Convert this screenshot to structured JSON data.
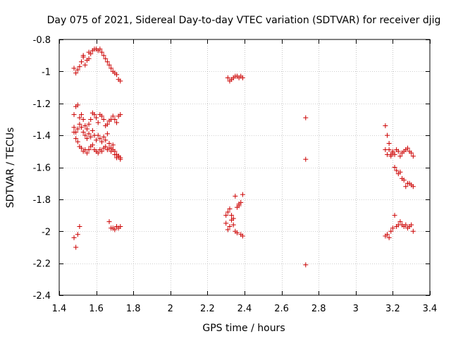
{
  "chart_data": {
    "type": "scatter",
    "title": "Day 075 of 2021, Sidereal Day-to-day VTEC variation (SDTVAR) for receiver djig",
    "xlabel": "GPS time / hours",
    "ylabel": "SDTVAR / TECUs",
    "xlim": [
      1.4,
      3.4
    ],
    "ylim": [
      -2.4,
      -0.8
    ],
    "xticks": [
      1.4,
      1.6,
      1.8,
      2,
      2.2,
      2.4,
      2.6,
      2.8,
      3,
      3.2,
      3.4
    ],
    "xtick_labels": [
      "1.4",
      "1.6",
      "1.8",
      "2",
      "2.2",
      "2.4",
      "2.6",
      "2.8",
      "3",
      "3.2",
      "3.4"
    ],
    "yticks": [
      -0.8,
      -1,
      -1.2,
      -1.4,
      -1.6,
      -1.8,
      -2,
      -2.2,
      -2.4
    ],
    "ytick_labels": [
      "-0.8",
      "-1",
      "-1.2",
      "-1.4",
      "-1.6",
      "-1.8",
      "-2",
      "-2.2",
      "-2.4"
    ],
    "grid": true,
    "marker": "+",
    "color": "#cc0000",
    "series": [
      {
        "name": "SDTVAR",
        "points": [
          [
            1.48,
            -0.98
          ],
          [
            1.49,
            -1.01
          ],
          [
            1.5,
            -0.99
          ],
          [
            1.51,
            -0.97
          ],
          [
            1.52,
            -0.94
          ],
          [
            1.53,
            -0.91
          ],
          [
            1.54,
            -0.96
          ],
          [
            1.55,
            -0.93
          ],
          [
            1.56,
            -0.92
          ],
          [
            1.57,
            -0.89
          ],
          [
            1.58,
            -0.87
          ],
          [
            1.59,
            -0.86
          ],
          [
            1.6,
            -0.86
          ],
          [
            1.61,
            -0.87
          ],
          [
            1.62,
            -0.86
          ],
          [
            1.63,
            -0.88
          ],
          [
            1.64,
            -0.9
          ],
          [
            1.65,
            -0.92
          ],
          [
            1.66,
            -0.94
          ],
          [
            1.67,
            -0.96
          ],
          [
            1.68,
            -0.98
          ],
          [
            1.69,
            -1.0
          ],
          [
            1.7,
            -1.01
          ],
          [
            1.71,
            -1.02
          ],
          [
            1.72,
            -1.05
          ],
          [
            1.73,
            -1.06
          ],
          [
            1.53,
            -0.9
          ],
          [
            1.56,
            -0.88
          ],
          [
            1.48,
            -1.27
          ],
          [
            1.49,
            -1.22
          ],
          [
            1.5,
            -1.21
          ],
          [
            1.51,
            -1.29
          ],
          [
            1.52,
            -1.27
          ],
          [
            1.53,
            -1.3
          ],
          [
            1.54,
            -1.34
          ],
          [
            1.55,
            -1.36
          ],
          [
            1.56,
            -1.33
          ],
          [
            1.57,
            -1.3
          ],
          [
            1.58,
            -1.26
          ],
          [
            1.59,
            -1.27
          ],
          [
            1.6,
            -1.29
          ],
          [
            1.61,
            -1.32
          ],
          [
            1.62,
            -1.27
          ],
          [
            1.63,
            -1.28
          ],
          [
            1.64,
            -1.3
          ],
          [
            1.65,
            -1.34
          ],
          [
            1.66,
            -1.33
          ],
          [
            1.67,
            -1.31
          ],
          [
            1.68,
            -1.3
          ],
          [
            1.69,
            -1.28
          ],
          [
            1.7,
            -1.3
          ],
          [
            1.71,
            -1.32
          ],
          [
            1.72,
            -1.28
          ],
          [
            1.73,
            -1.27
          ],
          [
            1.48,
            -1.35
          ],
          [
            1.49,
            -1.38
          ],
          [
            1.5,
            -1.36
          ],
          [
            1.51,
            -1.33
          ],
          [
            1.52,
            -1.35
          ],
          [
            1.53,
            -1.38
          ],
          [
            1.54,
            -1.4
          ],
          [
            1.55,
            -1.42
          ],
          [
            1.56,
            -1.39
          ],
          [
            1.57,
            -1.41
          ],
          [
            1.58,
            -1.37
          ],
          [
            1.59,
            -1.4
          ],
          [
            1.6,
            -1.43
          ],
          [
            1.61,
            -1.4
          ],
          [
            1.62,
            -1.42
          ],
          [
            1.63,
            -1.44
          ],
          [
            1.64,
            -1.41
          ],
          [
            1.65,
            -1.43
          ],
          [
            1.66,
            -1.39
          ],
          [
            1.67,
            -1.45
          ],
          [
            1.68,
            -1.48
          ],
          [
            1.69,
            -1.46
          ],
          [
            1.7,
            -1.5
          ],
          [
            1.71,
            -1.52
          ],
          [
            1.72,
            -1.53
          ],
          [
            1.73,
            -1.55
          ],
          [
            1.48,
            -1.38
          ],
          [
            1.49,
            -1.42
          ],
          [
            1.5,
            -1.44
          ],
          [
            1.51,
            -1.47
          ],
          [
            1.52,
            -1.48
          ],
          [
            1.53,
            -1.5
          ],
          [
            1.54,
            -1.49
          ],
          [
            1.55,
            -1.51
          ],
          [
            1.56,
            -1.49
          ],
          [
            1.57,
            -1.47
          ],
          [
            1.58,
            -1.46
          ],
          [
            1.59,
            -1.49
          ],
          [
            1.6,
            -1.5
          ],
          [
            1.61,
            -1.51
          ],
          [
            1.62,
            -1.49
          ],
          [
            1.63,
            -1.5
          ],
          [
            1.64,
            -1.48
          ],
          [
            1.65,
            -1.47
          ],
          [
            1.66,
            -1.49
          ],
          [
            1.67,
            -1.48
          ],
          [
            1.68,
            -1.5
          ],
          [
            1.69,
            -1.49
          ],
          [
            1.7,
            -1.52
          ],
          [
            1.71,
            -1.54
          ],
          [
            1.72,
            -1.53
          ],
          [
            1.73,
            -1.54
          ],
          [
            1.48,
            -2.04
          ],
          [
            1.49,
            -2.1
          ],
          [
            1.5,
            -2.02
          ],
          [
            1.51,
            -1.97
          ],
          [
            1.67,
            -1.94
          ],
          [
            1.68,
            -1.98
          ],
          [
            1.69,
            -1.98
          ],
          [
            1.7,
            -1.99
          ],
          [
            1.71,
            -1.97
          ],
          [
            1.72,
            -1.98
          ],
          [
            1.73,
            -1.97
          ],
          [
            2.31,
            -1.04
          ],
          [
            2.32,
            -1.06
          ],
          [
            2.33,
            -1.05
          ],
          [
            2.34,
            -1.04
          ],
          [
            2.35,
            -1.03
          ],
          [
            2.36,
            -1.03
          ],
          [
            2.37,
            -1.04
          ],
          [
            2.38,
            -1.03
          ],
          [
            2.39,
            -1.04
          ],
          [
            2.3,
            -1.9
          ],
          [
            2.31,
            -1.88
          ],
          [
            2.32,
            -1.86
          ],
          [
            2.33,
            -1.9
          ],
          [
            2.34,
            -1.92
          ],
          [
            2.35,
            -1.78
          ],
          [
            2.36,
            -1.85
          ],
          [
            2.37,
            -1.83
          ],
          [
            2.38,
            -1.82
          ],
          [
            2.39,
            -1.77
          ],
          [
            2.3,
            -1.95
          ],
          [
            2.31,
            -1.99
          ],
          [
            2.32,
            -1.97
          ],
          [
            2.33,
            -1.93
          ],
          [
            2.34,
            -1.96
          ],
          [
            2.35,
            -2.0
          ],
          [
            2.36,
            -2.01
          ],
          [
            2.37,
            -1.84
          ],
          [
            2.38,
            -2.02
          ],
          [
            2.39,
            -2.03
          ],
          [
            2.73,
            -1.29
          ],
          [
            2.73,
            -1.55
          ],
          [
            2.73,
            -2.21
          ],
          [
            3.16,
            -1.34
          ],
          [
            3.17,
            -1.4
          ],
          [
            3.18,
            -1.45
          ],
          [
            3.19,
            -1.52
          ],
          [
            3.2,
            -1.5
          ],
          [
            3.21,
            -1.6
          ],
          [
            3.22,
            -1.62
          ],
          [
            3.23,
            -1.64
          ],
          [
            3.24,
            -1.63
          ],
          [
            3.25,
            -1.67
          ],
          [
            3.26,
            -1.68
          ],
          [
            3.27,
            -1.72
          ],
          [
            3.28,
            -1.7
          ],
          [
            3.29,
            -1.7
          ],
          [
            3.3,
            -1.71
          ],
          [
            3.31,
            -1.72
          ],
          [
            3.16,
            -1.49
          ],
          [
            3.17,
            -1.52
          ],
          [
            3.18,
            -1.49
          ],
          [
            3.19,
            -1.53
          ],
          [
            3.2,
            -1.51
          ],
          [
            3.21,
            -1.52
          ],
          [
            3.22,
            -1.49
          ],
          [
            3.23,
            -1.5
          ],
          [
            3.24,
            -1.53
          ],
          [
            3.25,
            -1.51
          ],
          [
            3.26,
            -1.5
          ],
          [
            3.27,
            -1.49
          ],
          [
            3.28,
            -1.48
          ],
          [
            3.29,
            -1.5
          ],
          [
            3.3,
            -1.51
          ],
          [
            3.31,
            -1.53
          ],
          [
            3.16,
            -2.03
          ],
          [
            3.17,
            -2.02
          ],
          [
            3.18,
            -2.04
          ],
          [
            3.19,
            -2.0
          ],
          [
            3.2,
            -1.98
          ],
          [
            3.21,
            -1.9
          ],
          [
            3.22,
            -1.97
          ],
          [
            3.23,
            -1.96
          ],
          [
            3.24,
            -1.94
          ],
          [
            3.25,
            -1.96
          ],
          [
            3.26,
            -1.97
          ],
          [
            3.27,
            -1.96
          ],
          [
            3.28,
            -1.98
          ],
          [
            3.29,
            -1.97
          ],
          [
            3.3,
            -1.96
          ],
          [
            3.31,
            -2.0
          ]
        ]
      }
    ]
  }
}
